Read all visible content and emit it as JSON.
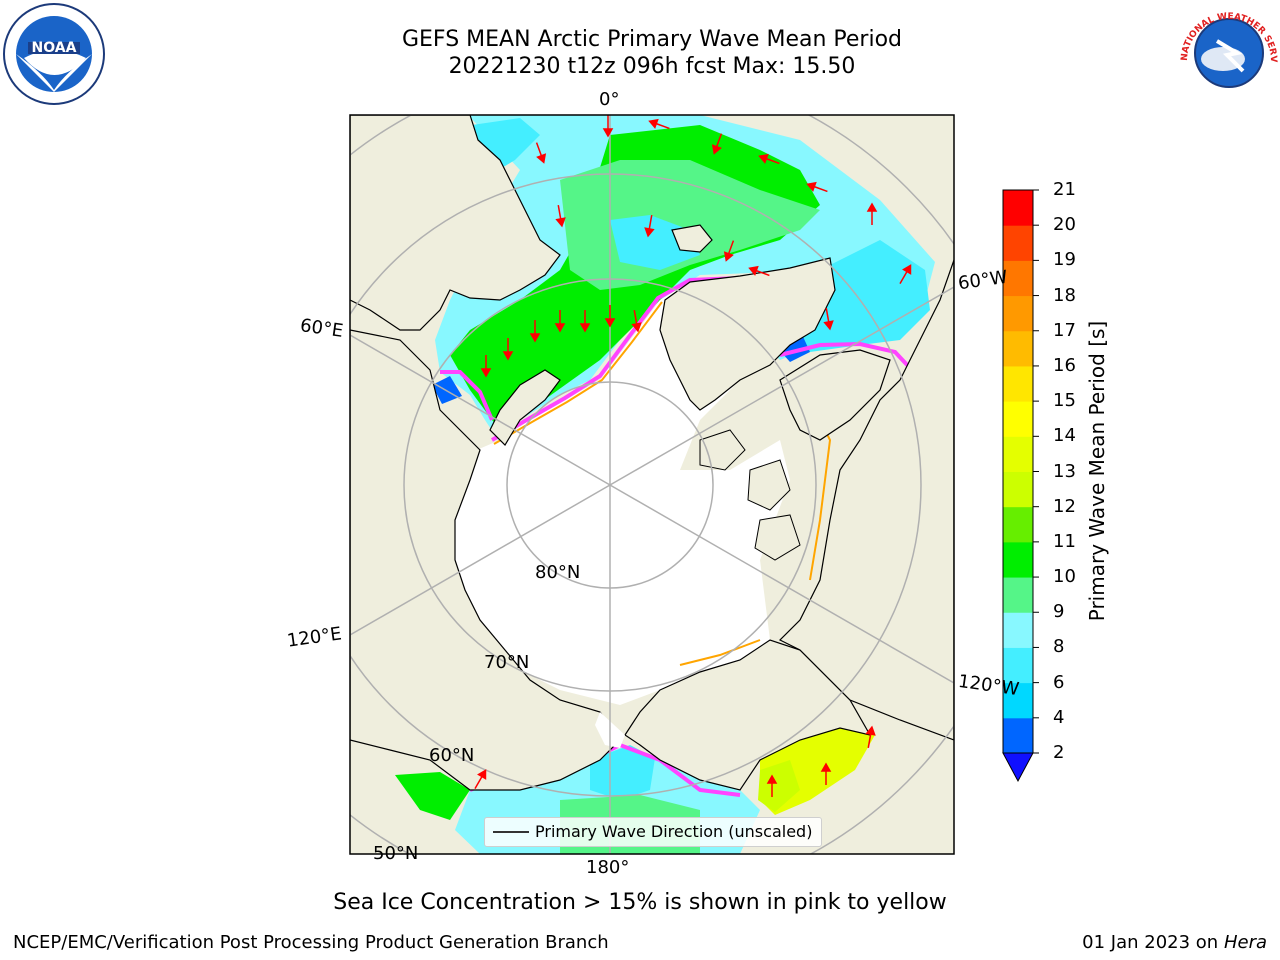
{
  "header": {
    "title_line1": "GEFS MEAN Arctic Primary Wave Mean Period",
    "title_line2": "20221230 t12z 096h fcst   Max: 15.50"
  },
  "logos": {
    "left": "noaa-logo",
    "right": "national-weather-service-logo",
    "left_text": "NOAA",
    "right_text": "NATIONAL WEATHER SERVICE"
  },
  "map": {
    "projection": "north-polar-stereographic",
    "longitude_labels": {
      "top": "0°",
      "bottom": "180°",
      "left_upper": "60°E",
      "left_lower": "120°E",
      "right_upper": "60°W",
      "right_lower": "120°W"
    },
    "latitude_labels": {
      "lat80": "80°N",
      "lat70": "70°N",
      "lat60": "60°N",
      "lat50": "50°N"
    },
    "colors": {
      "land": "#efeedd",
      "sea_ice": "#ffffff",
      "ice_edge": [
        "#ff44ff",
        "#ffa500",
        "#ffee00"
      ],
      "arrow": "#ff0000",
      "grid": "#b0b0b0",
      "frame": "#000000"
    },
    "legend_text": "Primary Wave Direction (unscaled)"
  },
  "colorbar": {
    "label": "Primary Wave Mean Period [s]",
    "ticks": [
      "2",
      "4",
      "6",
      "8",
      "9",
      "10",
      "11",
      "12",
      "13",
      "14",
      "15",
      "16",
      "17",
      "18",
      "19",
      "20",
      "21"
    ],
    "colors": [
      "#0066ff",
      "#00d8ff",
      "#44eeff",
      "#88f8ff",
      "#55f588",
      "#00ee00",
      "#66ee00",
      "#ccff00",
      "#e4ff00",
      "#ffff00",
      "#ffe600",
      "#ffbb00",
      "#ff9900",
      "#ff7700",
      "#ff4400",
      "#ff0000"
    ],
    "under_color": "#1010ff",
    "extend": "min"
  },
  "caption": "Sea Ice Concentration > 15% is shown in pink to yellow",
  "footer": {
    "left": "NCEP/EMC/Verification Post Processing Product Generation Branch",
    "date": "01 Jan 2023 on ",
    "host": "Hera"
  }
}
